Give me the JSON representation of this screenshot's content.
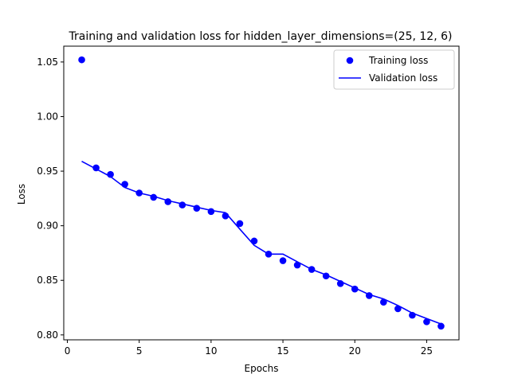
{
  "chart_data": {
    "type": "line",
    "title": "Training and validation loss for hidden_layer_dimensions=(25, 12, 6)",
    "xlabel": "Epochs",
    "ylabel": "Loss",
    "xlim": [
      -0.25,
      27.25
    ],
    "ylim": [
      0.7955,
      1.0645
    ],
    "xticks": [
      0,
      5,
      10,
      15,
      20,
      25
    ],
    "yticks": [
      0.8,
      0.85,
      0.9,
      0.95,
      1.0,
      1.05
    ],
    "ytick_labels": [
      "0.80",
      "0.85",
      "0.90",
      "0.95",
      "1.00",
      "1.05"
    ],
    "grid": false,
    "legend": "upper right",
    "series": [
      {
        "name": "Training loss",
        "style": "points",
        "color": "#0000ff",
        "x": [
          1,
          2,
          3,
          4,
          5,
          6,
          7,
          8,
          9,
          10,
          11,
          12,
          13,
          14,
          15,
          16,
          17,
          18,
          19,
          20,
          21,
          22,
          23,
          24,
          25,
          26
        ],
        "values": [
          1.052,
          0.953,
          0.947,
          0.938,
          0.93,
          0.926,
          0.922,
          0.919,
          0.916,
          0.913,
          0.909,
          0.902,
          0.886,
          0.874,
          0.868,
          0.864,
          0.86,
          0.854,
          0.847,
          0.842,
          0.836,
          0.83,
          0.824,
          0.818,
          0.812,
          0.808
        ]
      },
      {
        "name": "Validation loss",
        "style": "line",
        "color": "#0000ff",
        "x": [
          1,
          2,
          3,
          4,
          5,
          6,
          7,
          8,
          9,
          10,
          11,
          12,
          13,
          14,
          15,
          16,
          17,
          18,
          19,
          20,
          21,
          22,
          23,
          24,
          25,
          26
        ],
        "values": [
          0.959,
          0.952,
          0.945,
          0.935,
          0.93,
          0.927,
          0.923,
          0.92,
          0.917,
          0.914,
          0.912,
          0.897,
          0.882,
          0.874,
          0.874,
          0.867,
          0.86,
          0.855,
          0.849,
          0.843,
          0.837,
          0.833,
          0.827,
          0.82,
          0.815,
          0.81
        ]
      }
    ]
  }
}
